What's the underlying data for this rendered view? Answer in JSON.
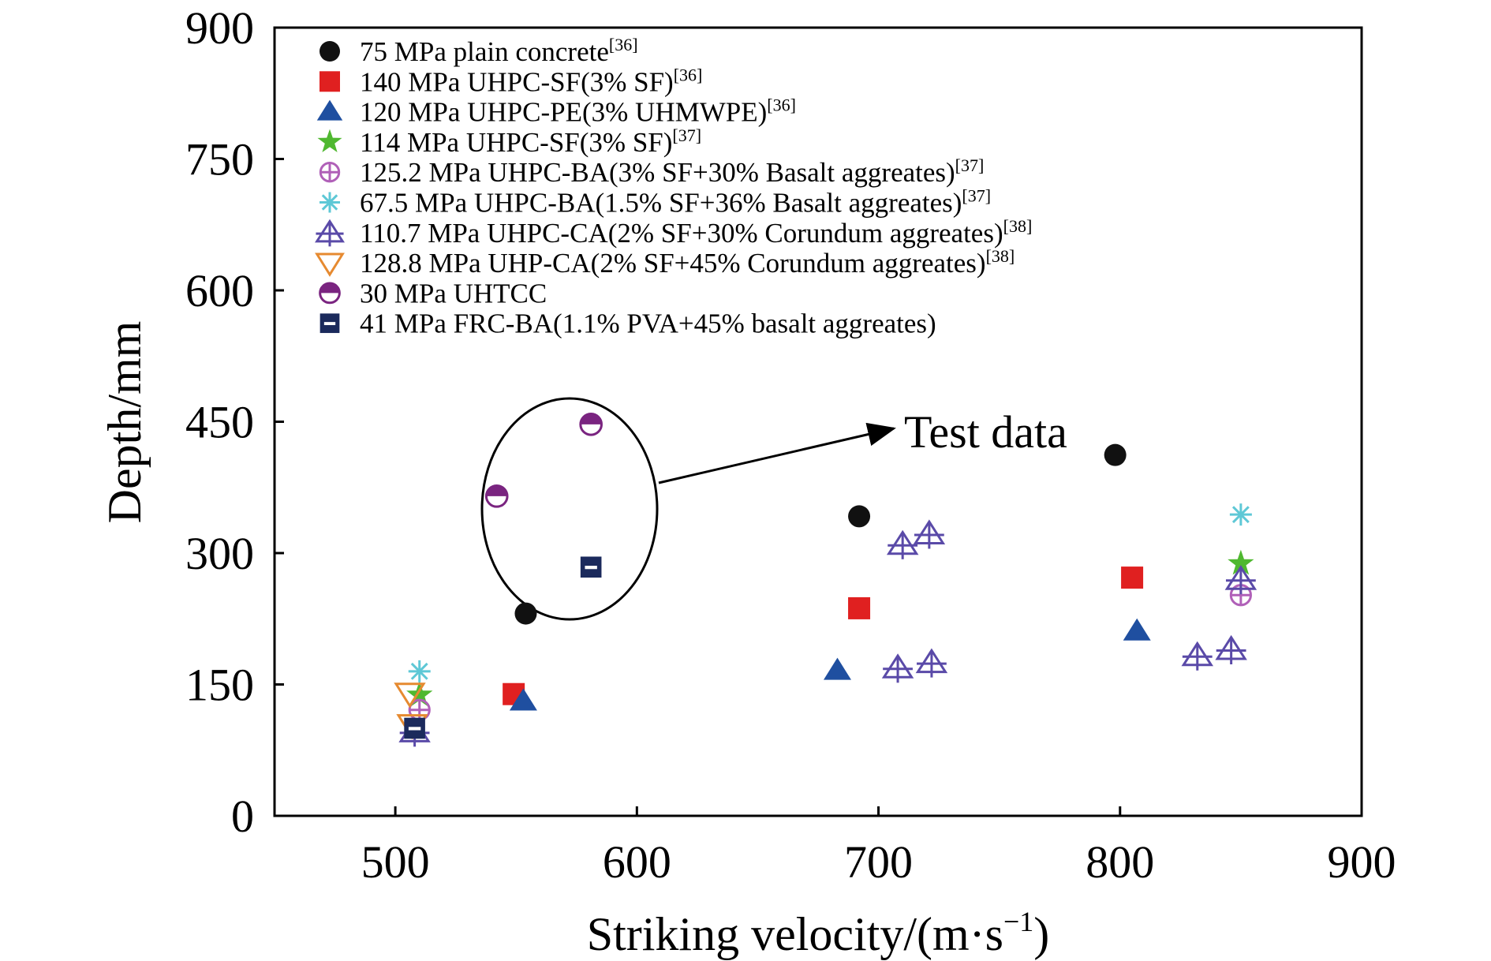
{
  "chart_data": {
    "type": "scatter",
    "xlabel": "Striking velocity/(m·s",
    "xlabel_sup": "−1",
    "xlabel_suffix": ")",
    "ylabel": "Depth/mm",
    "xlim": [
      450,
      900
    ],
    "ylim": [
      0,
      900
    ],
    "xticks": [
      "500",
      "600",
      "700",
      "800",
      "900"
    ],
    "yticks": [
      "0",
      "150",
      "300",
      "450",
      "600",
      "750",
      "900"
    ],
    "legend_position": "top-left",
    "annotation": "Test data",
    "series": [
      {
        "name": "75 MPa plain concrete",
        "ref": "[36]",
        "marker": "circle",
        "color": "#111111",
        "points": [
          [
            554,
            231
          ],
          [
            692,
            342
          ],
          [
            798,
            412
          ]
        ]
      },
      {
        "name": "140 MPa UHPC-SF(3% SF)",
        "ref": "[36]",
        "marker": "square",
        "color": "#e02020",
        "points": [
          [
            549,
            139
          ],
          [
            692,
            237
          ],
          [
            805,
            272
          ]
        ]
      },
      {
        "name": "120 MPa UHPC-PE(3% UHMWPE)",
        "ref": "[36]",
        "marker": "triangle",
        "color": "#1f4fa0",
        "points": [
          [
            553,
            131
          ],
          [
            683,
            166
          ],
          [
            807,
            211
          ]
        ]
      },
      {
        "name": "114 MPa UHPC-SF(3% SF)",
        "ref": "[37]",
        "marker": "star",
        "color": "#4fb830",
        "points": [
          [
            510,
            138
          ],
          [
            850,
            288
          ]
        ]
      },
      {
        "name": "125.2 MPa UHPC-BA(3% SF+30% Basalt aggreates)",
        "ref": "[37]",
        "marker": "circle-plus",
        "color": "#b060b8",
        "points": [
          [
            510,
            121
          ],
          [
            850,
            252
          ]
        ]
      },
      {
        "name": "67.5 MPa UHPC-BA(1.5% SF+36% Basalt aggreates)",
        "ref": "[37]",
        "marker": "asterisk",
        "color": "#5ec8d6",
        "points": [
          [
            510,
            165
          ],
          [
            850,
            344
          ]
        ]
      },
      {
        "name": "110.7 MPa UHPC-CA(2% SF+30% Corundum aggreates)",
        "ref": "[38]",
        "marker": "triangle-plus",
        "color": "#5a4aa8",
        "points": [
          [
            508,
            96
          ],
          [
            710,
            310
          ],
          [
            721,
            322
          ],
          [
            708,
            169
          ],
          [
            722,
            175
          ],
          [
            832,
            183
          ],
          [
            846,
            190
          ],
          [
            850,
            270
          ]
        ]
      },
      {
        "name": "128.8 MPa UHP-CA(2% SF+45% Corundum aggreates)",
        "ref": "[38]",
        "marker": "triangle-down",
        "color": "#e68a30",
        "points": [
          [
            506,
            140
          ],
          [
            507,
            104
          ]
        ]
      },
      {
        "name": "30 MPa UHTCC",
        "ref": "",
        "marker": "half-circle",
        "color": "#7a2480",
        "points": [
          [
            542,
            365
          ],
          [
            581,
            447
          ]
        ]
      },
      {
        "name": "41 MPa FRC-BA(1.1% PVA+45% basalt aggreates)",
        "ref": "",
        "marker": "half-square",
        "color": "#1b2a5c",
        "points": [
          [
            581,
            284
          ],
          [
            508,
            100
          ]
        ]
      }
    ]
  }
}
